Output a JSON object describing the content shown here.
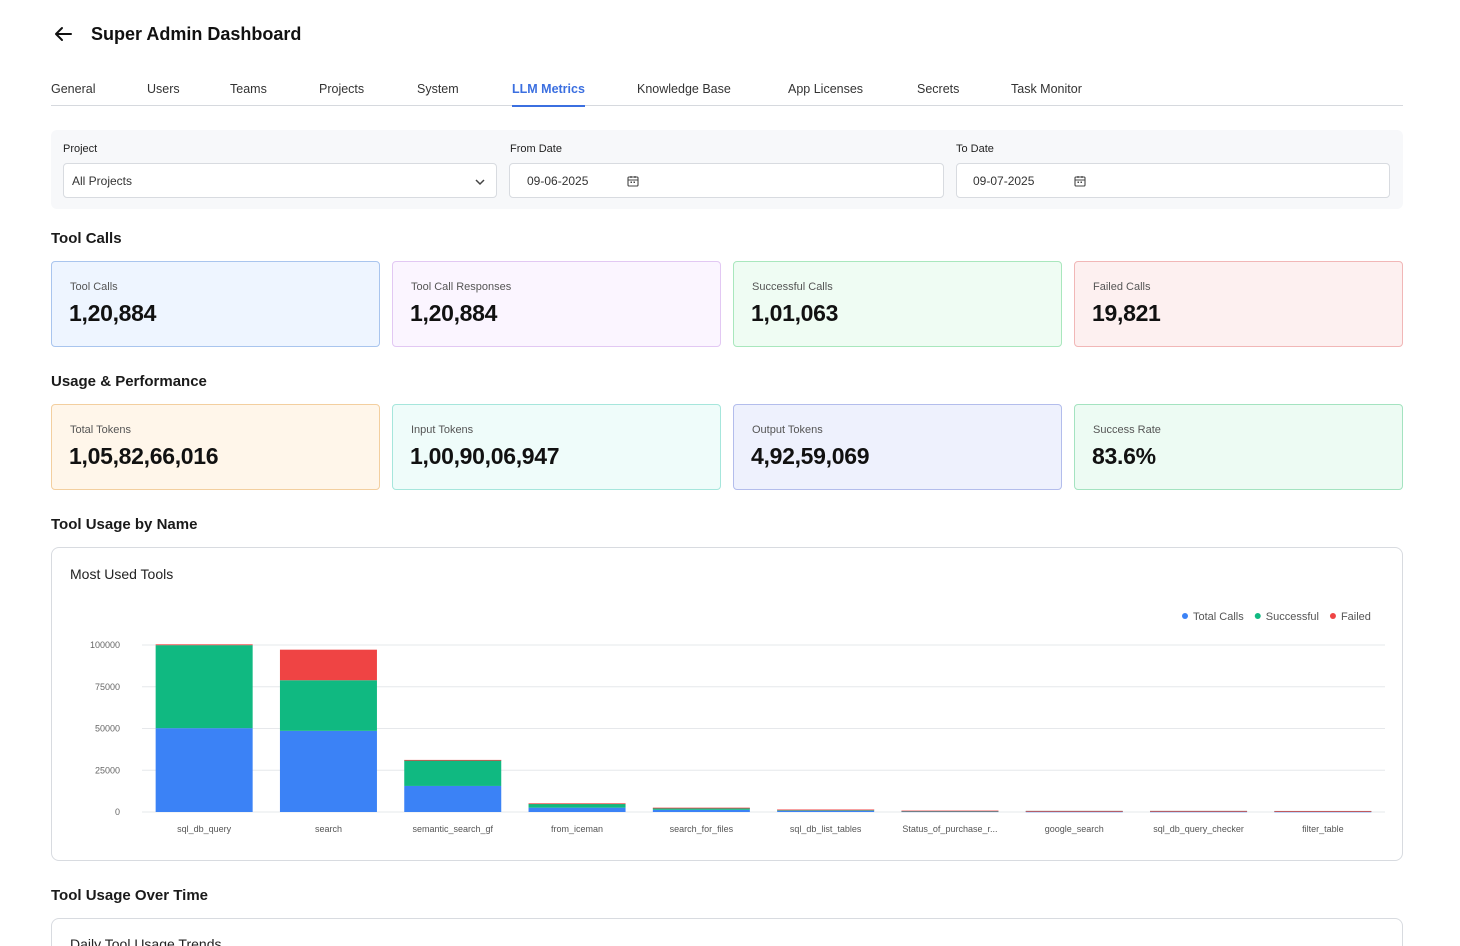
{
  "header": {
    "title": "Super Admin Dashboard"
  },
  "tabs": [
    {
      "label": "General"
    },
    {
      "label": "Users"
    },
    {
      "label": "Teams"
    },
    {
      "label": "Projects"
    },
    {
      "label": "System"
    },
    {
      "label": "LLM Metrics",
      "active": true
    },
    {
      "label": "Knowledge Base"
    },
    {
      "label": "App Licenses"
    },
    {
      "label": "Secrets"
    },
    {
      "label": "Task Monitor"
    }
  ],
  "filters": {
    "project": {
      "label": "Project",
      "value": "All Projects"
    },
    "from_date": {
      "label": "From Date",
      "value": "09-06-2025"
    },
    "to_date": {
      "label": "To Date",
      "value": "09-07-2025"
    }
  },
  "sections": {
    "tool_calls": "Tool Calls",
    "usage": "Usage & Performance",
    "tool_usage": "Tool Usage by Name",
    "over_time": "Tool Usage Over Time"
  },
  "tool_call_cards": [
    {
      "label": "Tool Calls",
      "value": "1,20,884"
    },
    {
      "label": "Tool Call Responses",
      "value": "1,20,884"
    },
    {
      "label": "Successful Calls",
      "value": "1,01,063"
    },
    {
      "label": "Failed Calls",
      "value": "19,821"
    }
  ],
  "usage_cards": [
    {
      "label": "Total Tokens",
      "value": "1,05,82,66,016"
    },
    {
      "label": "Input Tokens",
      "value": "1,00,90,06,947"
    },
    {
      "label": "Output Tokens",
      "value": "4,92,59,069"
    },
    {
      "label": "Success Rate",
      "value": "83.6%"
    }
  ],
  "chart_card": {
    "title": "Most Used Tools"
  },
  "trend_card": {
    "title": "Daily Tool Usage Trends"
  },
  "colors": {
    "accent": "#3b6fe0",
    "total": "#3b82f6",
    "successful": "#10b981",
    "failed": "#ef4444"
  },
  "chart_data": {
    "type": "bar",
    "stacked": true,
    "categories": [
      "sql_db_query",
      "search",
      "semantic_search_gf",
      "from_iceman",
      "search_for_files",
      "sql_db_list_tables",
      "Status_of_purchase_r...",
      "google_search",
      "sql_db_query_checker",
      "filter_table"
    ],
    "series": [
      {
        "name": "Total Calls",
        "color": "#3b82f6",
        "values": [
          50200,
          48600,
          15600,
          2600,
          1300,
          750,
          420,
          330,
          330,
          310
        ]
      },
      {
        "name": "Successful",
        "color": "#10b981",
        "values": [
          49700,
          30300,
          15400,
          2300,
          1100,
          700,
          200,
          320,
          310,
          300
        ]
      },
      {
        "name": "Failed",
        "color": "#ef4444",
        "values": [
          500,
          18300,
          200,
          300,
          200,
          50,
          220,
          10,
          20,
          10
        ]
      }
    ],
    "yticks": [
      0,
      25000,
      50000,
      75000,
      100000
    ],
    "ylim": [
      0,
      100000
    ],
    "grid": true,
    "legend": "top-right"
  }
}
